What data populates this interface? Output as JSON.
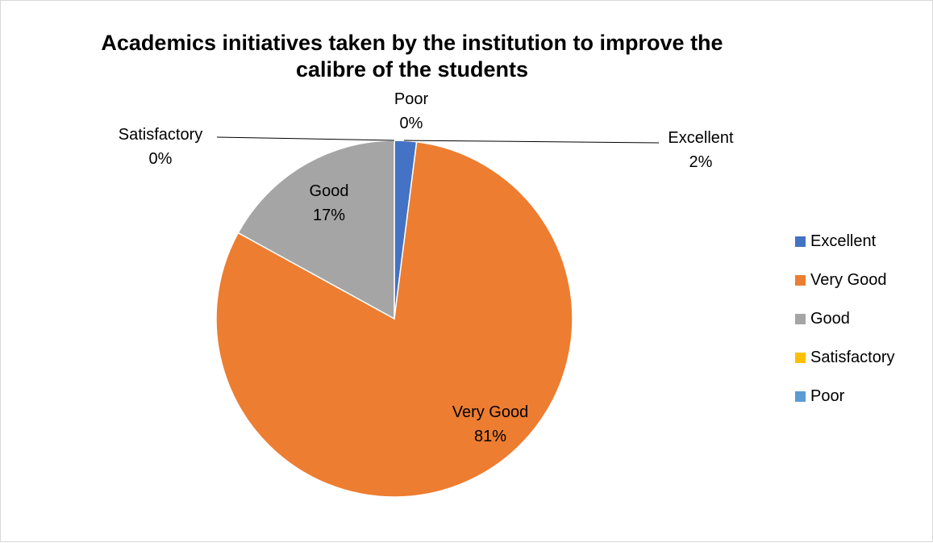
{
  "chart_data": {
    "type": "pie",
    "title": "Academics initiatives taken by the institution to improve the calibre of the students",
    "slices": [
      {
        "name": "Excellent",
        "value": 2,
        "label": "2%",
        "color": "#4472C4"
      },
      {
        "name": "Very Good",
        "value": 81,
        "label": "81%",
        "color": "#ED7D31"
      },
      {
        "name": "Good",
        "value": 17,
        "label": "17%",
        "color": "#A5A5A5"
      },
      {
        "name": "Satisfactory",
        "value": 0,
        "label": "0%",
        "color": "#FFC000"
      },
      {
        "name": "Poor",
        "value": 0,
        "label": "0%",
        "color": "#5B9BD5"
      }
    ],
    "legend_position": "right"
  }
}
